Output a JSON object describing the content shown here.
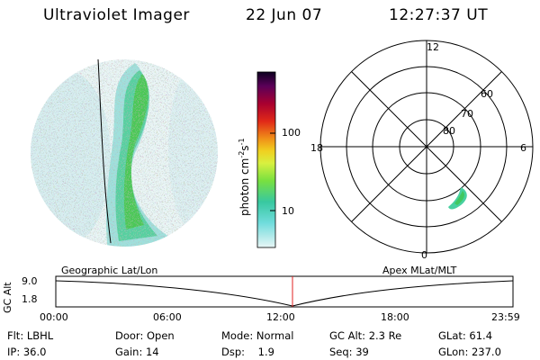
{
  "header": {
    "instrument": "Ultraviolet Imager",
    "date": "22 Jun 07",
    "time": "12:27:37 UT"
  },
  "colorbar": {
    "unit_label": "photon cm",
    "ticks": [
      "100",
      "10"
    ],
    "colors": [
      "#1a0033",
      "#3a0050",
      "#6a0058",
      "#900048",
      "#b00028",
      "#d0201a",
      "#e8501a",
      "#f08a18",
      "#f0b818",
      "#f0e028",
      "#e0f040",
      "#b0f040",
      "#70e040",
      "#40d050",
      "#30c890",
      "#40d8c8",
      "#90e8e8",
      "#d8f4f4"
    ]
  },
  "polar_plot": {
    "lat_labels": [
      "80",
      "70",
      "60"
    ],
    "mlt_labels": {
      "top": "12",
      "bottom": "0",
      "left": "18",
      "right": "6"
    }
  },
  "timeline": {
    "axis_label": "GC Alt",
    "y_ticks": [
      "9.0",
      "1.8"
    ],
    "left_title": "Geographic Lat/Lon",
    "right_title": "Apex MLat/MLT",
    "x_ticks": [
      "00:00",
      "06:00",
      "12:00",
      "18:00",
      "23:59"
    ],
    "marker_color": "#e02020"
  },
  "info": {
    "row1": [
      {
        "key": "Flt:",
        "value": "LBHL"
      },
      {
        "key": "Door:",
        "value": "Open"
      },
      {
        "key": "Mode:",
        "value": "Normal"
      },
      {
        "key": "GC Alt:",
        "value": "2.3 Re"
      },
      {
        "key": "GLat:",
        "value": "61.4"
      }
    ],
    "row2": [
      {
        "key": "IP:",
        "value": "36.0"
      },
      {
        "key": "Gain:",
        "value": "14"
      },
      {
        "key": "Dsp:",
        "value": "1.9"
      },
      {
        "key": "Seq:",
        "value": "39"
      },
      {
        "key": "GLon:",
        "value": "237.0"
      }
    ]
  }
}
